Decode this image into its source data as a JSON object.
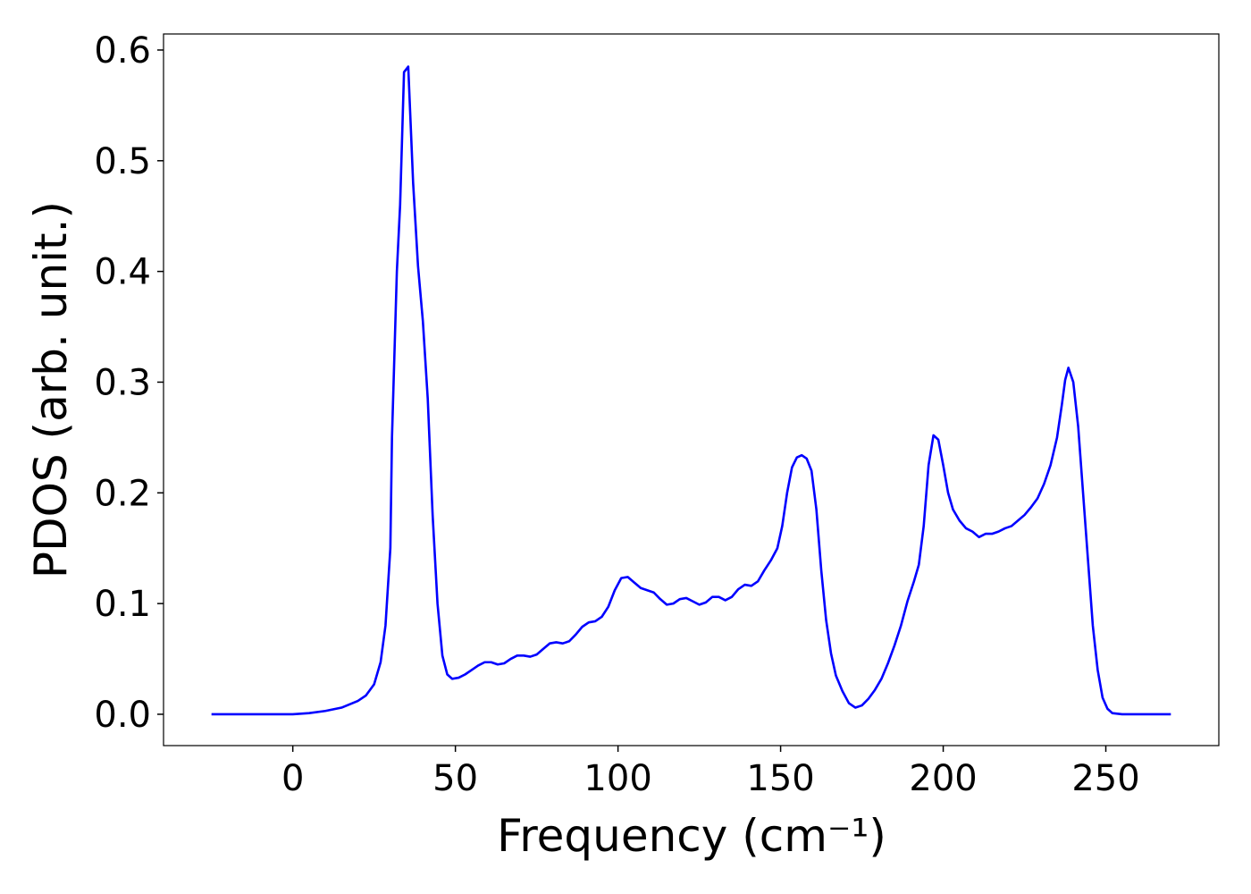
{
  "chart_data": {
    "type": "line",
    "x_label": "Frequency (cm⁻¹)",
    "y_label": "PDOS (arb. unit.)",
    "color": "#0000ff",
    "xlim": [
      -39.75,
      284.75
    ],
    "ylim": [
      -0.0283,
      0.6145
    ],
    "xticks": [
      0,
      50,
      100,
      150,
      200,
      250
    ],
    "yticks": [
      {
        "value": 0,
        "label": "0.0"
      },
      0.1,
      0.2,
      0.3,
      0.4,
      0.5,
      0.6
    ],
    "x": [
      -25,
      0,
      5,
      10,
      15,
      20,
      22.5,
      25,
      27,
      28.5,
      30,
      30.5,
      32,
      33,
      34.2,
      35.5,
      37,
      38.5,
      40,
      41.5,
      43,
      44.5,
      46,
      47.5,
      49,
      51,
      53,
      55,
      57,
      59,
      61,
      63,
      65,
      67,
      69,
      71,
      73,
      75,
      77,
      79,
      81,
      83,
      85,
      87,
      89,
      91,
      93,
      95,
      97,
      99,
      101,
      103,
      105,
      107,
      109,
      111,
      113,
      115,
      117,
      119,
      121,
      123,
      125,
      127,
      129,
      131,
      133,
      135,
      137,
      139,
      141,
      143,
      145,
      147,
      149,
      150.5,
      152,
      153.5,
      155,
      156.5,
      158,
      159.5,
      161,
      162.5,
      164,
      165.5,
      167,
      169,
      171,
      173,
      175,
      177,
      179,
      181,
      183,
      185,
      187,
      189,
      191,
      192.5,
      194,
      195.5,
      197,
      198.5,
      200,
      201.5,
      203,
      205,
      207,
      209,
      211,
      213,
      215,
      217,
      219,
      221,
      223,
      225,
      227,
      229,
      231,
      233,
      235,
      236.5,
      237.5,
      238.5,
      240,
      241.5,
      243,
      244.5,
      246,
      247.5,
      249,
      250.5,
      252,
      255,
      270
    ],
    "values": [
      0,
      0,
      0.001,
      0.003,
      0.006,
      0.012,
      0.017,
      0.027,
      0.047,
      0.08,
      0.15,
      0.25,
      0.4,
      0.46,
      0.58,
      0.585,
      0.48,
      0.405,
      0.355,
      0.285,
      0.18,
      0.1,
      0.053,
      0.036,
      0.032,
      0.033,
      0.036,
      0.04,
      0.044,
      0.047,
      0.047,
      0.045,
      0.046,
      0.05,
      0.053,
      0.053,
      0.052,
      0.054,
      0.059,
      0.064,
      0.065,
      0.064,
      0.066,
      0.072,
      0.079,
      0.083,
      0.084,
      0.088,
      0.097,
      0.112,
      0.123,
      0.124,
      0.119,
      0.114,
      0.112,
      0.11,
      0.104,
      0.099,
      0.1,
      0.104,
      0.105,
      0.102,
      0.099,
      0.101,
      0.106,
      0.106,
      0.103,
      0.106,
      0.113,
      0.117,
      0.116,
      0.12,
      0.13,
      0.139,
      0.15,
      0.17,
      0.2,
      0.223,
      0.232,
      0.234,
      0.231,
      0.22,
      0.185,
      0.13,
      0.085,
      0.055,
      0.035,
      0.021,
      0.01,
      0.006,
      0.008,
      0.014,
      0.022,
      0.032,
      0.046,
      0.062,
      0.08,
      0.102,
      0.12,
      0.135,
      0.17,
      0.225,
      0.252,
      0.248,
      0.225,
      0.2,
      0.185,
      0.175,
      0.168,
      0.165,
      0.16,
      0.163,
      0.163,
      0.165,
      0.168,
      0.17,
      0.175,
      0.18,
      0.187,
      0.195,
      0.208,
      0.225,
      0.25,
      0.28,
      0.302,
      0.313,
      0.3,
      0.26,
      0.2,
      0.14,
      0.08,
      0.04,
      0.015,
      0.005,
      0.001,
      0,
      0
    ]
  }
}
